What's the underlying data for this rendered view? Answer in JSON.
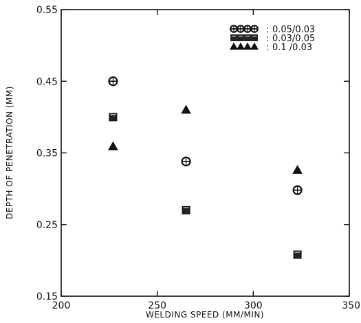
{
  "chart_data": {
    "type": "scatter",
    "title": "",
    "xlabel": "WELDING SPEED (MM/MIN)",
    "ylabel": "DEPTH OF PENETRATION (MM)",
    "xlim": [
      200,
      350
    ],
    "ylim": [
      0.15,
      0.55
    ],
    "xticks": [
      "200",
      "250",
      "300",
      "350"
    ],
    "yticks": [
      "0.15",
      "0.25",
      "0.35",
      "0.45",
      "0.55"
    ],
    "grid": false,
    "legend_position": "top-right",
    "series": [
      {
        "name": "0.05/0.03",
        "marker": "circle-hatched",
        "x": [
          227,
          265,
          323
        ],
        "y": [
          0.45,
          0.338,
          0.298
        ]
      },
      {
        "name": "0.03/0.05",
        "marker": "square",
        "x": [
          227,
          265,
          323
        ],
        "y": [
          0.4,
          0.27,
          0.208
        ]
      },
      {
        "name": "0.1 /0.03",
        "marker": "triangle",
        "x": [
          227,
          265,
          323
        ],
        "y": [
          0.359,
          0.41,
          0.326
        ]
      }
    ]
  }
}
